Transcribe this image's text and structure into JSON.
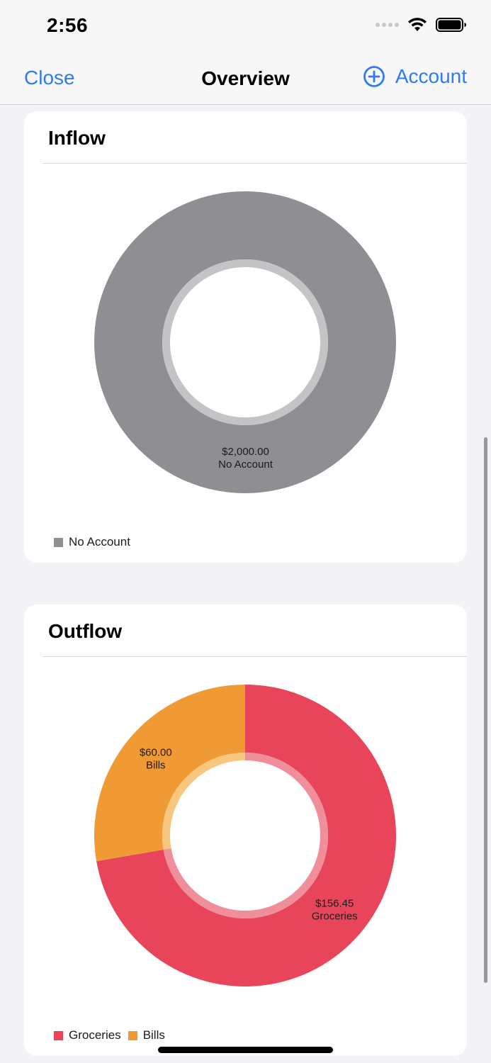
{
  "status_bar": {
    "time": "2:56"
  },
  "nav": {
    "close_label": "Close",
    "title": "Overview",
    "account_label": "Account"
  },
  "inflow": {
    "title": "Inflow",
    "chart_data": {
      "type": "pie",
      "title": "Inflow",
      "slices": [
        {
          "name": "No Account",
          "value": 2000.0,
          "value_label": "$2,000.00",
          "color": "#8e8e93",
          "inner_color": "#c4c4c6"
        }
      ],
      "legend": [
        "No Account"
      ],
      "legend_placement": "bottom-left",
      "donut": true
    }
  },
  "outflow": {
    "title": "Outflow",
    "chart_data": {
      "type": "pie",
      "title": "Outflow",
      "slices": [
        {
          "name": "Groceries",
          "value": 156.45,
          "value_label": "$156.45",
          "color": "#e9455a",
          "inner_color": "#f08e9b"
        },
        {
          "name": "Bills",
          "value": 60.0,
          "value_label": "$60.00",
          "color": "#f09a36",
          "inner_color": "#f7c67f"
        }
      ],
      "legend": [
        "Groceries",
        "Bills"
      ],
      "legend_placement": "bottom-left",
      "donut": true
    }
  }
}
